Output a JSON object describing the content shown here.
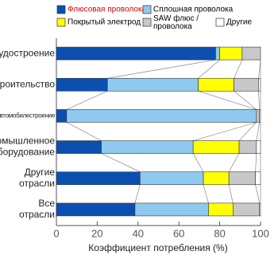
{
  "chart_data": {
    "type": "stacked-bar-horizontal",
    "x_label": "Коэффициент потребления (%)",
    "categories": [
      "Судостроение",
      "Строительство",
      "Автомобилестроение",
      "Промышленное\nоборудование",
      "Другие\nотрасли",
      "Все\nотрасли"
    ],
    "series": [
      {
        "name": "Флюсовая проволока",
        "color": "#0b4fb0",
        "label_color": "#e00000",
        "values": [
          78,
          25,
          5,
          22,
          41,
          38.5
        ]
      },
      {
        "name": "Сплошная проволока",
        "color": "#8ecaf0",
        "label_color": "#000000",
        "values": [
          2,
          44.5,
          93,
          45,
          31,
          36
        ]
      },
      {
        "name": "Покрытый электрод",
        "color": "#ffff00",
        "label_color": "#000000",
        "values": [
          11,
          17.5,
          0,
          22.5,
          12.5,
          12
        ]
      },
      {
        "name": "SAW флюс /\nпроволока",
        "color": "#c8c8c8",
        "label_color": "#000000",
        "values": [
          9,
          12,
          1.5,
          8.5,
          13,
          13
        ]
      },
      {
        "name": "Другие",
        "color": "#ffffff",
        "label_color": "#000000",
        "values": [
          0,
          1,
          0.5,
          2,
          2.5,
          0.5
        ]
      }
    ],
    "xlim": [
      0,
      100
    ],
    "xticks": [
      0,
      20,
      40,
      60,
      80,
      100
    ]
  }
}
